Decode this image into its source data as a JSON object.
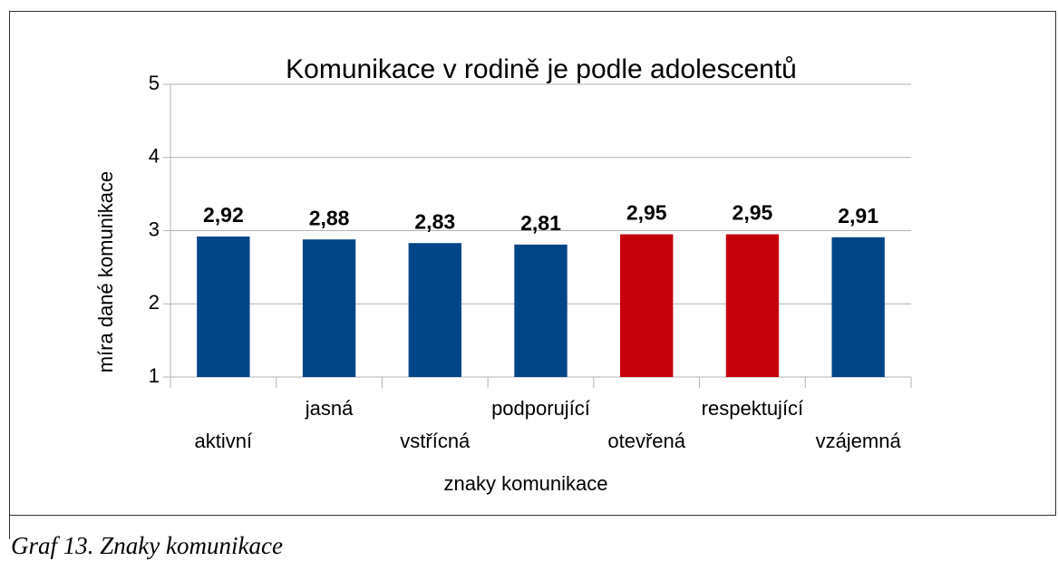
{
  "chart_data": {
    "type": "bar",
    "title": "Komunikace v rodině je podle adolescentů",
    "categories": [
      "aktivní",
      "jasná",
      "vstřícná",
      "podporující",
      "otevřená",
      "respektující",
      "vzájemná"
    ],
    "values": [
      2.92,
      2.88,
      2.83,
      2.81,
      2.95,
      2.95,
      2.91
    ],
    "value_labels": [
      "2,92",
      "2,88",
      "2,83",
      "2,81",
      "2,95",
      "2,95",
      "2,91"
    ],
    "colors": [
      "#004586",
      "#004586",
      "#004586",
      "#004586",
      "#c5000b",
      "#c5000b",
      "#004586"
    ],
    "ylim": [
      1,
      5
    ],
    "yticks": [
      1,
      2,
      3,
      4,
      5
    ],
    "grid": true,
    "ylabel": "míra dané komunikace",
    "xlabel": "znaky komunikace"
  },
  "caption": "Graf 13. Znaky komunikace"
}
